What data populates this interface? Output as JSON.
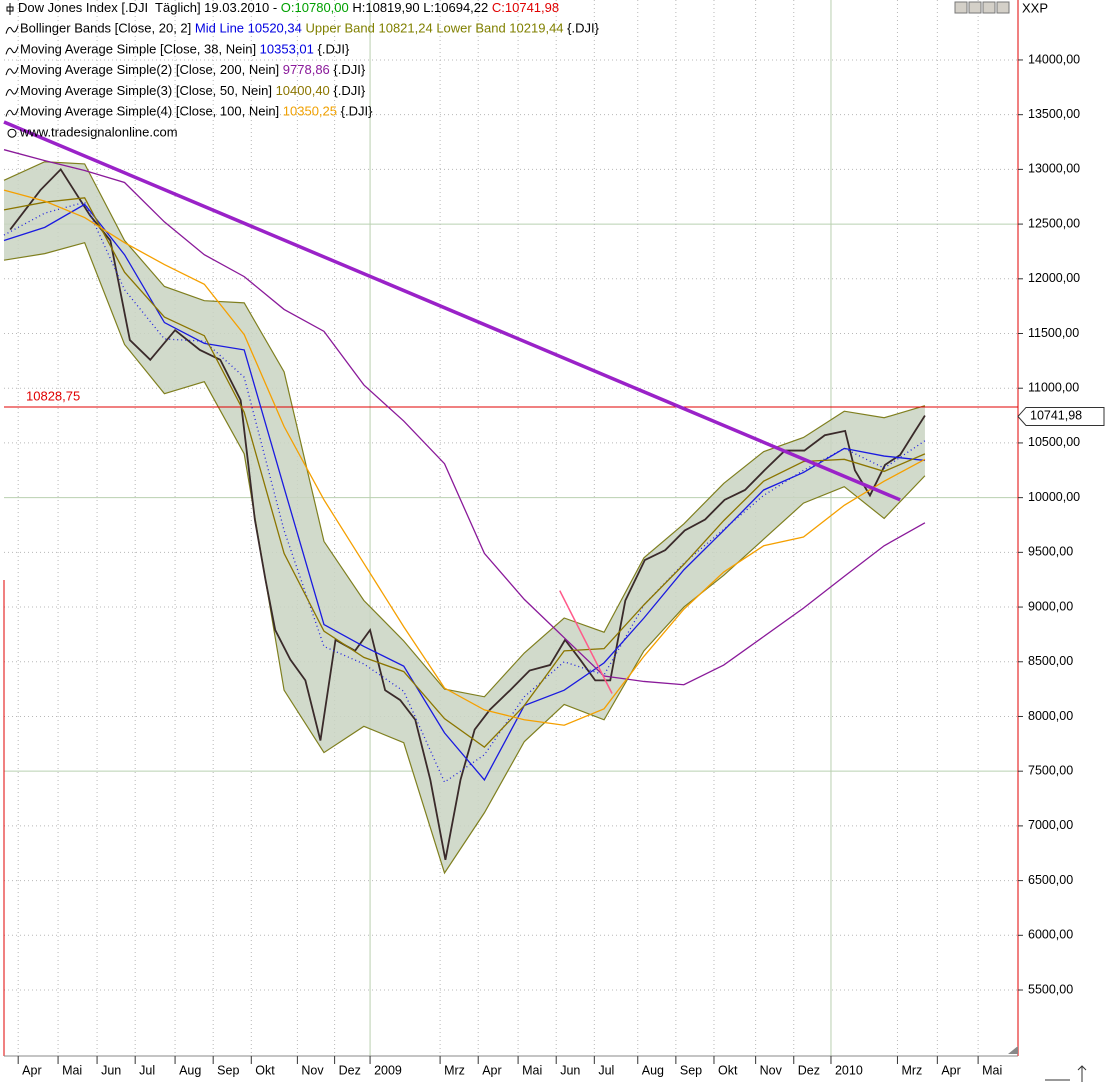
{
  "chart_data": {
    "type": "line",
    "instrument_label": "XXP",
    "legend": [
      [
        {
          "text": "Dow Jones Index [.DJI  Täglich] 19.03.2010 - ",
          "color": "#000000"
        },
        {
          "text": "O:10780,00",
          "color": "#00a000"
        },
        {
          "text": " H:10819,90 L:10694,22 ",
          "color": "#000000"
        },
        {
          "text": "C:10741,98",
          "color": "#e00000"
        }
      ],
      [
        {
          "text": "Bollinger Bands [Close, 20, 2] ",
          "color": "#000000"
        },
        {
          "text": "Mid Line 10520,34",
          "color": "#0000e0"
        },
        {
          "text": " Upper Band 10821,24",
          "color": "#808000"
        },
        {
          "text": " Lower Band 10219,44",
          "color": "#808000"
        },
        {
          "text": " {.DJI}",
          "color": "#000000"
        }
      ],
      [
        {
          "text": "Moving Average Simple [Close, 38, Nein] ",
          "color": "#000000"
        },
        {
          "text": "10353,01",
          "color": "#0000e0"
        },
        {
          "text": " {.DJI}",
          "color": "#000000"
        }
      ],
      [
        {
          "text": "Moving Average Simple(2) [Close, 200, Nein] ",
          "color": "#000000"
        },
        {
          "text": "9778,86",
          "color": "#8a1a9a"
        },
        {
          "text": " {.DJI}",
          "color": "#000000"
        }
      ],
      [
        {
          "text": "Moving Average Simple(3) [Close, 50, Nein] ",
          "color": "#000000"
        },
        {
          "text": "10400,40",
          "color": "#8b7500"
        },
        {
          "text": " {.DJI}",
          "color": "#000000"
        }
      ],
      [
        {
          "text": "Moving Average Simple(4) [Close, 100, Nein] ",
          "color": "#000000"
        },
        {
          "text": "10350,25",
          "color": "#f0a000"
        },
        {
          "text": " {.DJI}",
          "color": "#000000"
        }
      ]
    ],
    "watermark": "www.tradesignalonline.com",
    "xlim": [
      -2.3,
      112.1
    ],
    "ylim": [
      4897,
      14548
    ],
    "xticks": [
      {
        "value": -0.7,
        "label": "Apr"
      },
      {
        "value": 3.8,
        "label": "Mai"
      },
      {
        "value": 8.2,
        "label": "Jun"
      },
      {
        "value": 12.5,
        "label": "Jul"
      },
      {
        "value": 17.0,
        "label": "Aug"
      },
      {
        "value": 21.3,
        "label": "Sep"
      },
      {
        "value": 25.6,
        "label": "Okt"
      },
      {
        "value": 30.8,
        "label": "Nov"
      },
      {
        "value": 35.0,
        "label": "Dez"
      },
      {
        "value": 39.0,
        "label": "2009"
      },
      {
        "value": 46.9,
        "label": "Mrz"
      },
      {
        "value": 51.2,
        "label": "Apr"
      },
      {
        "value": 55.7,
        "label": "Mai"
      },
      {
        "value": 60.0,
        "label": "Jun"
      },
      {
        "value": 64.3,
        "label": "Jul"
      },
      {
        "value": 69.2,
        "label": "Aug"
      },
      {
        "value": 73.5,
        "label": "Sep"
      },
      {
        "value": 77.8,
        "label": "Okt"
      },
      {
        "value": 82.5,
        "label": "Nov"
      },
      {
        "value": 86.8,
        "label": "Dez"
      },
      {
        "value": 91.0,
        "label": "2010"
      },
      {
        "value": 98.5,
        "label": "Mrz"
      },
      {
        "value": 103.0,
        "label": "Apr"
      },
      {
        "value": 107.6,
        "label": "Mai"
      }
    ],
    "yticks": [
      {
        "value": 5500,
        "label": "5500,00"
      },
      {
        "value": 6000,
        "label": "6000,00"
      },
      {
        "value": 6500,
        "label": "6500,00"
      },
      {
        "value": 7000,
        "label": "7000,00"
      },
      {
        "value": 7500,
        "label": "7500,00"
      },
      {
        "value": 8000,
        "label": "8000,00"
      },
      {
        "value": 8500,
        "label": "8500,00"
      },
      {
        "value": 9000,
        "label": "9000,00"
      },
      {
        "value": 9500,
        "label": "9500,00"
      },
      {
        "value": 10000,
        "label": "10000,00"
      },
      {
        "value": 10500,
        "label": "10500,00"
      },
      {
        "value": 11000,
        "label": "11000,00"
      },
      {
        "value": 11500,
        "label": "11500,00"
      },
      {
        "value": 12000,
        "label": "12000,00"
      },
      {
        "value": 12500,
        "label": "12500,00"
      },
      {
        "value": 13000,
        "label": "13000,00"
      },
      {
        "value": 13500,
        "label": "13500,00"
      },
      {
        "value": 14000,
        "label": "14000,00"
      }
    ],
    "grid": true,
    "band": {
      "color": "#c9d3c2",
      "edge": "#7f7f1f",
      "x": [
        -2.3,
        2.3,
        6.8,
        11.3,
        15.8,
        20.3,
        24.8,
        29.3,
        33.8,
        38.3,
        42.8,
        47.4,
        51.9,
        56.4,
        60.9,
        65.4,
        69.9,
        74.4,
        78.9,
        83.4,
        87.9,
        92.5,
        97.0,
        101.6
      ],
      "upper": [
        12900,
        13070,
        13050,
        12350,
        11930,
        11800,
        11780,
        11150,
        9600,
        9060,
        8690,
        8250,
        8180,
        8580,
        8900,
        8770,
        9450,
        9760,
        10130,
        10420,
        10550,
        10790,
        10730,
        10840
      ],
      "lower": [
        12170,
        12230,
        12330,
        11400,
        10950,
        11060,
        10400,
        8240,
        7670,
        7910,
        7760,
        6570,
        7120,
        7770,
        8110,
        7970,
        8600,
        9000,
        9290,
        9620,
        9950,
        10100,
        9810,
        10200
      ]
    },
    "series": [
      {
        "color": "#3a2a2a",
        "x": [
          -1.6,
          1.8,
          4.1,
          7.4,
          9.7,
          11.9,
          14.2,
          17.0,
          19.8,
          22.1,
          24.4,
          26.0,
          27.2,
          28.3,
          30.0,
          31.7,
          33.4,
          35.1,
          37.3,
          39.0,
          40.7,
          42.4,
          44.1,
          45.8,
          47.5,
          49.2,
          50.8,
          52.5,
          54.8,
          57.0,
          59.3,
          61.0,
          62.7,
          64.4,
          66.1,
          67.8,
          70.0,
          72.3,
          74.5,
          76.8,
          79.0,
          81.3,
          83.5,
          85.8,
          88.0,
          90.3,
          92.6,
          93.7,
          95.4,
          97.1,
          98.8,
          100.5,
          101.6
        ],
        "values": [
          12450,
          12810,
          13000,
          12580,
          12350,
          11440,
          11260,
          11530,
          11350,
          11260,
          10890,
          9800,
          9250,
          8790,
          8520,
          8330,
          7780,
          8700,
          8600,
          8790,
          8240,
          8150,
          7970,
          7420,
          6690,
          7420,
          7880,
          8060,
          8240,
          8420,
          8470,
          8700,
          8520,
          8330,
          8330,
          9060,
          9430,
          9520,
          9700,
          9800,
          9980,
          10070,
          10250,
          10430,
          10430,
          10570,
          10610,
          10250,
          10020,
          10300,
          10390,
          10610,
          10750
        ]
      },
      {
        "color": "#2020e0",
        "dashed": true,
        "x": [
          -2.3,
          2.3,
          6.8,
          11.3,
          15.8,
          20.3,
          24.8,
          29.3,
          33.8,
          38.3,
          42.8,
          47.4,
          51.9,
          56.4,
          60.9,
          65.4,
          69.9,
          74.4,
          78.9,
          83.4,
          87.9,
          92.5,
          97.0,
          101.6
        ],
        "values": [
          12400,
          12600,
          12700,
          11900,
          11450,
          11430,
          11100,
          9700,
          8640,
          8480,
          8230,
          7400,
          7650,
          8180,
          8500,
          8380,
          9020,
          9400,
          9710,
          10020,
          10250,
          10450,
          10270,
          10520
        ]
      },
      {
        "color": "#1a1ae0",
        "x": [
          -2.3,
          2.3,
          6.8,
          11.3,
          15.8,
          20.3,
          24.8,
          29.3,
          33.8,
          38.3,
          42.8,
          47.4,
          51.9,
          56.4,
          60.9,
          65.4,
          69.9,
          74.4,
          78.9,
          83.4,
          87.9,
          92.5,
          97.0,
          101.6
        ],
        "values": [
          12350,
          12470,
          12680,
          12220,
          11600,
          11410,
          11350,
          10090,
          8840,
          8640,
          8460,
          7850,
          7420,
          8100,
          8240,
          8490,
          8900,
          9340,
          9700,
          10070,
          10230,
          10450,
          10380,
          10340
        ]
      },
      {
        "color": "#8a1a9a",
        "x": [
          -2.3,
          2.3,
          6.8,
          11.3,
          15.8,
          20.3,
          24.8,
          29.3,
          33.8,
          38.3,
          42.8,
          47.4,
          51.9,
          56.4,
          60.9,
          65.4,
          69.9,
          74.4,
          78.9,
          83.4,
          87.9,
          92.5,
          97.0,
          101.6
        ],
        "values": [
          13180,
          13080,
          12990,
          12880,
          12520,
          12220,
          12020,
          11720,
          11520,
          11030,
          10700,
          10310,
          9490,
          9070,
          8720,
          8370,
          8320,
          8290,
          8470,
          8730,
          8990,
          9280,
          9560,
          9770
        ]
      },
      {
        "color": "#8b7500",
        "x": [
          -2.3,
          2.3,
          6.8,
          11.3,
          15.8,
          20.3,
          24.8,
          29.3,
          33.8,
          38.3,
          42.8,
          47.4,
          51.9,
          56.4,
          60.9,
          65.4,
          69.9,
          74.4,
          78.9,
          83.4,
          87.9,
          92.5,
          97.0,
          101.6
        ],
        "values": [
          12630,
          12700,
          12740,
          12060,
          11650,
          11480,
          10780,
          9490,
          8780,
          8540,
          8410,
          7980,
          7720,
          8100,
          8600,
          8620,
          9020,
          9390,
          9790,
          10150,
          10330,
          10350,
          10240,
          10400
        ]
      },
      {
        "color": "#f5a000",
        "x": [
          -2.3,
          2.3,
          6.8,
          11.3,
          15.8,
          20.3,
          24.8,
          29.3,
          33.8,
          38.3,
          42.8,
          47.4,
          51.9,
          56.4,
          60.9,
          65.4,
          69.9,
          74.4,
          78.9,
          83.4,
          87.9,
          92.5,
          97.0,
          101.6
        ],
        "values": [
          12810,
          12710,
          12560,
          12330,
          12130,
          11950,
          11490,
          10650,
          9980,
          9400,
          8820,
          8260,
          8060,
          7970,
          7920,
          8070,
          8550,
          8980,
          9320,
          9560,
          9640,
          9930,
          10150,
          10350
        ]
      }
    ],
    "trendlines": [
      {
        "color": "#9a22c8",
        "thick": true,
        "x": [
          -2.3,
          98.8
        ],
        "values": [
          13433,
          9980
        ]
      },
      {
        "color": "#ff5a8a",
        "thick": false,
        "x": [
          60.4,
          66.3
        ],
        "values": [
          9150,
          8210
        ]
      }
    ],
    "level": {
      "value": 10828.75,
      "label": "10828,75",
      "color": "#e00000"
    },
    "last_price": {
      "value": 10741.98,
      "label": "10741,98"
    }
  }
}
